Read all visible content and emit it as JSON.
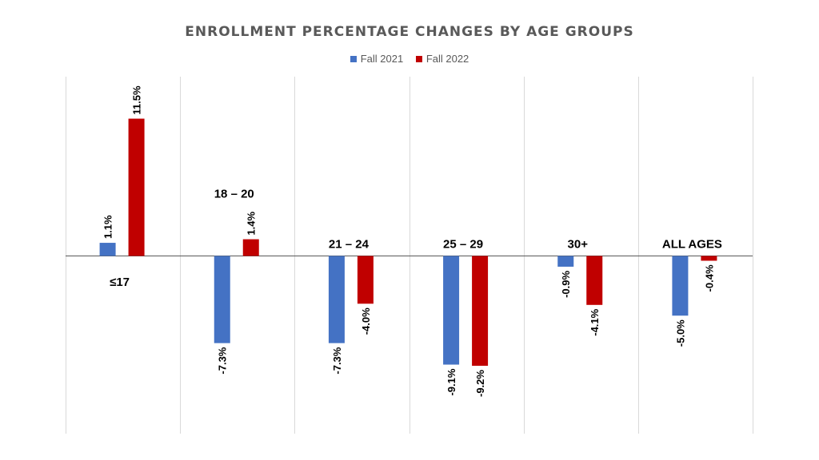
{
  "chart_data": {
    "type": "bar",
    "title": "ENROLLMENT PERCENTAGE CHANGES BY AGE GROUPS",
    "categories": [
      "≤17",
      "18 – 20",
      "21 – 24",
      "25 – 29",
      "30+",
      "ALL AGES"
    ],
    "series": [
      {
        "name": "Fall 2021",
        "values": [
          1.1,
          -7.3,
          -7.3,
          -9.1,
          -0.9,
          -5.0
        ],
        "labels": [
          "1.1%",
          "-7.3%",
          "-7.3%",
          "-9.1%",
          "-0.9%",
          "-5.0%"
        ]
      },
      {
        "name": "Fall 2022",
        "values": [
          11.5,
          1.4,
          -4.0,
          -9.2,
          -4.1,
          -0.4
        ],
        "labels": [
          "11.5%",
          "1.4%",
          "-4.0%",
          "-9.2%",
          "-4.1%",
          "-0.4%"
        ]
      }
    ],
    "ylim": [
      -15,
      15
    ],
    "grid": "vertical category separators",
    "legend": "top-center"
  },
  "colors": {
    "Fall 2021": "#4472C4",
    "Fall 2022": "#C00000",
    "axis": "#595959",
    "grid": "#D9D9D9",
    "text": "#000000"
  }
}
